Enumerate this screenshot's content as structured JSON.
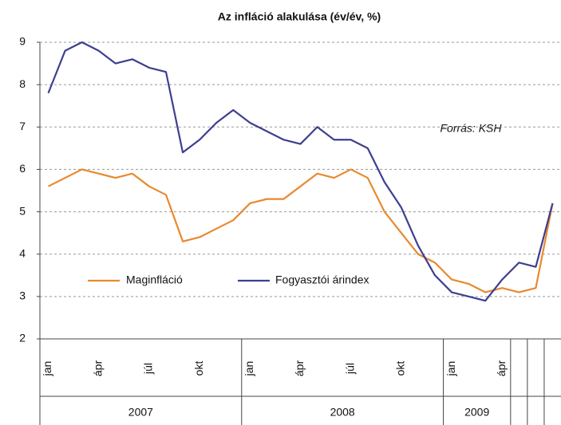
{
  "chart_data": {
    "type": "line",
    "title": "Az infláció alakulása (év/év, %)",
    "annotation": "Forrás: KSH",
    "categories": [
      "jan",
      null,
      null,
      "ápr",
      null,
      null,
      "júl",
      null,
      null,
      "okt",
      null,
      null,
      "jan",
      null,
      null,
      "ápr",
      null,
      null,
      "júl",
      null,
      null,
      "okt",
      null,
      null,
      "jan",
      null,
      null,
      "ápr",
      null,
      null,
      null
    ],
    "years": [
      "2007",
      null,
      null,
      null,
      null,
      null,
      null,
      null,
      null,
      null,
      null,
      null,
      "2008",
      null,
      null,
      null,
      null,
      null,
      null,
      null,
      null,
      null,
      null,
      null,
      "2009",
      null,
      null,
      null,
      null,
      null,
      null
    ],
    "series": [
      {
        "name": "Maginfláció",
        "color": "#e8892e",
        "values": [
          5.6,
          5.8,
          6.0,
          5.9,
          5.8,
          5.9,
          5.6,
          5.4,
          4.3,
          4.4,
          4.6,
          4.8,
          5.2,
          5.3,
          5.3,
          5.6,
          5.9,
          5.8,
          6.0,
          5.8,
          5.0,
          4.5,
          4.0,
          3.8,
          3.4,
          3.3,
          3.1,
          3.2,
          3.1,
          3.2,
          5.2
        ]
      },
      {
        "name": "Fogyasztói árindex",
        "color": "#3d3f8f",
        "values": [
          7.8,
          8.8,
          9.0,
          8.8,
          8.5,
          8.6,
          8.4,
          8.3,
          6.4,
          6.7,
          7.1,
          7.4,
          7.1,
          6.9,
          6.7,
          6.6,
          7.0,
          6.7,
          6.7,
          6.5,
          5.7,
          5.1,
          4.2,
          3.5,
          3.1,
          3.0,
          2.9,
          3.4,
          3.8,
          3.7,
          5.2
        ]
      }
    ],
    "ylim": [
      2,
      9
    ],
    "yticks": [
      2,
      3,
      4,
      5,
      6,
      7,
      8,
      9
    ],
    "grid": true
  }
}
